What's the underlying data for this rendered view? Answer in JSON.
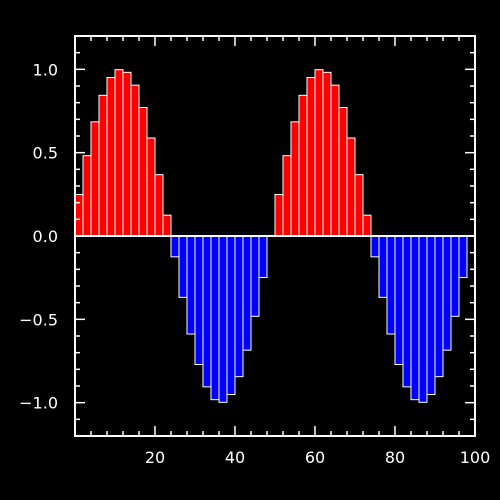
{
  "chart_data": {
    "type": "bar",
    "title": "",
    "xlabel": "",
    "ylabel": "",
    "xlim": [
      0,
      100
    ],
    "ylim": [
      -1.2,
      1.2
    ],
    "x_ticks": [
      20,
      40,
      60,
      80,
      100
    ],
    "x_tick_labels": [
      "20",
      "40",
      "60",
      "80",
      "100"
    ],
    "y_ticks": [
      -1.0,
      -0.5,
      0.0,
      0.5,
      1.0
    ],
    "y_tick_labels": [
      "−1.0",
      "−0.5",
      "0.0",
      "0.5",
      "1.0"
    ],
    "reference_line": 0,
    "grid": false,
    "bar_width": 2,
    "x": [
      1,
      3,
      5,
      7,
      9,
      11,
      13,
      15,
      17,
      19,
      21,
      23,
      25,
      27,
      29,
      31,
      33,
      35,
      37,
      39,
      41,
      43,
      45,
      47,
      49,
      51,
      53,
      55,
      57,
      59,
      61,
      63,
      65,
      67,
      69,
      71,
      73,
      75,
      77,
      79,
      81,
      83,
      85,
      87,
      89,
      91,
      93,
      95,
      97,
      99
    ],
    "values": [
      0.249,
      0.482,
      0.685,
      0.844,
      0.951,
      0.998,
      0.982,
      0.905,
      0.771,
      0.588,
      0.368,
      0.125,
      -0.125,
      -0.368,
      -0.588,
      -0.771,
      -0.905,
      -0.982,
      -0.998,
      -0.951,
      -0.844,
      -0.685,
      -0.482,
      -0.249,
      0.0,
      0.249,
      0.482,
      0.685,
      0.844,
      0.951,
      0.998,
      0.982,
      0.905,
      0.771,
      0.588,
      0.368,
      0.125,
      -0.125,
      -0.368,
      -0.588,
      -0.771,
      -0.905,
      -0.982,
      -0.998,
      -0.951,
      -0.844,
      -0.685,
      -0.482,
      -0.249,
      0.0
    ],
    "colors": {
      "positive": "#ff0000",
      "negative": "#0000ff",
      "bar_edge": "#ffffff",
      "axis": "#ffffff",
      "background": "#000000"
    }
  }
}
